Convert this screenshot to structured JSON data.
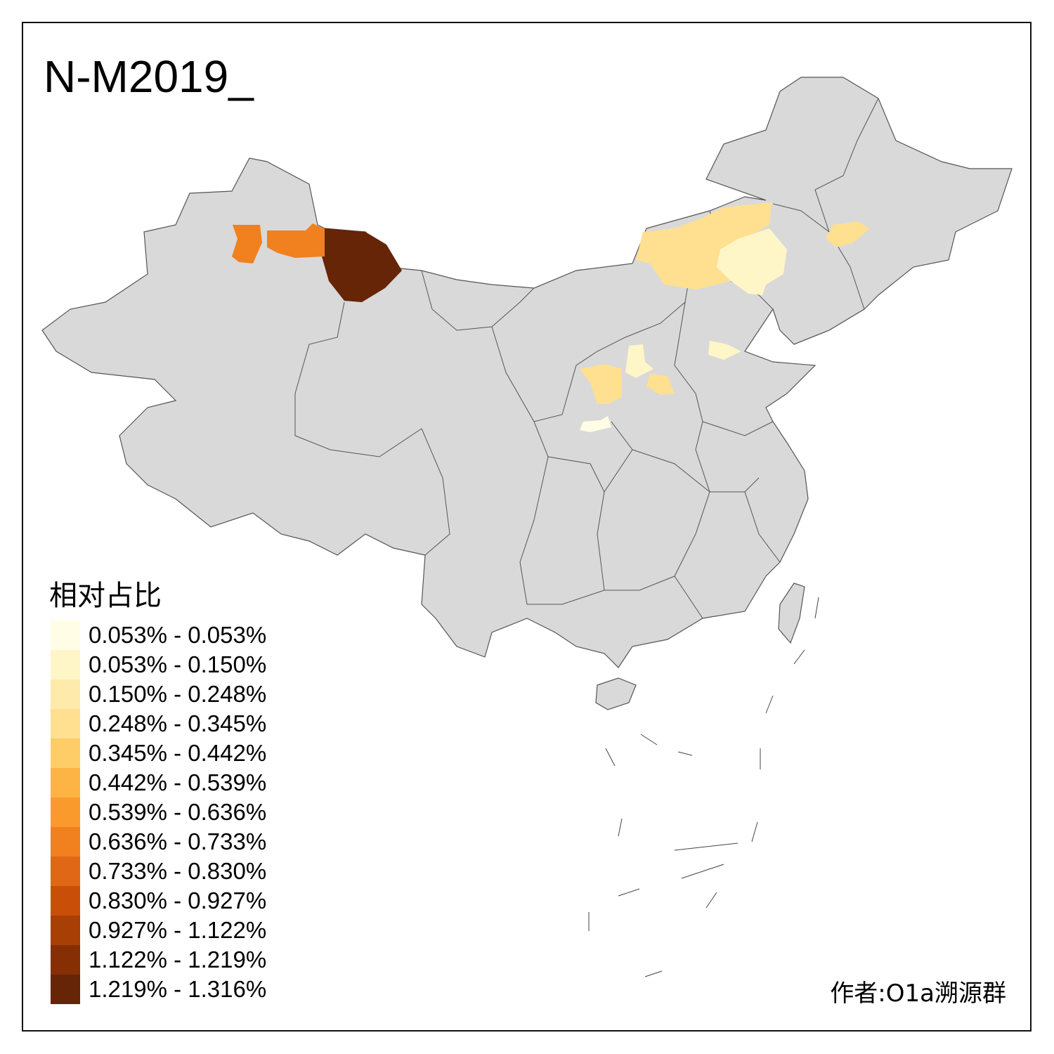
{
  "title": "N-M2019_",
  "legend": {
    "title": "相对占比",
    "items": [
      {
        "label": "0.053% - 0.053%",
        "color": "#FFFDE6"
      },
      {
        "label": "0.053% - 0.150%",
        "color": "#FFF6C8"
      },
      {
        "label": "0.150% - 0.248%",
        "color": "#FEEBAB"
      },
      {
        "label": "0.248% - 0.345%",
        "color": "#FEE090"
      },
      {
        "label": "0.345% - 0.442%",
        "color": "#FECD68"
      },
      {
        "label": "0.442% - 0.539%",
        "color": "#FDB445"
      },
      {
        "label": "0.539% - 0.636%",
        "color": "#FB9A2C"
      },
      {
        "label": "0.636% - 0.733%",
        "color": "#F1801F"
      },
      {
        "label": "0.733% - 0.830%",
        "color": "#DF6715"
      },
      {
        "label": "0.830% - 0.927%",
        "color": "#C94F08"
      },
      {
        "label": "0.927% - 1.122%",
        "color": "#A83F05"
      },
      {
        "label": "1.122% - 1.219%",
        "color": "#862F05"
      },
      {
        "label": "1.219% - 1.316%",
        "color": "#662506"
      }
    ]
  },
  "map": {
    "base_color": "#D9D9D9",
    "no_data_color": "#D9D9D9",
    "highlighted_regions": [
      {
        "area": "northern Xinjiang (Altay)",
        "legend_class": 13
      },
      {
        "area": "northern Xinjiang (Tacheng)",
        "legend_class": 8
      },
      {
        "area": "northern Xinjiang (Bortala)",
        "legend_class": 8
      },
      {
        "area": "eastern Inner Mongolia (Hulunbuir)",
        "legend_class": 4
      },
      {
        "area": "eastern Inner Mongolia (Xing'an)",
        "legend_class": 2
      },
      {
        "area": "Jilin",
        "legend_class": 4
      },
      {
        "area": "Shanxi north",
        "legend_class": 2
      },
      {
        "area": "Shanxi south",
        "legend_class": 4
      },
      {
        "area": "Shaanxi",
        "legend_class": 4
      },
      {
        "area": "Shaanxi south",
        "legend_class": 1
      },
      {
        "area": "Hebei",
        "legend_class": 3
      },
      {
        "area": "Shandong",
        "legend_class": 2
      }
    ]
  },
  "author": "作者:O1a溯源群"
}
